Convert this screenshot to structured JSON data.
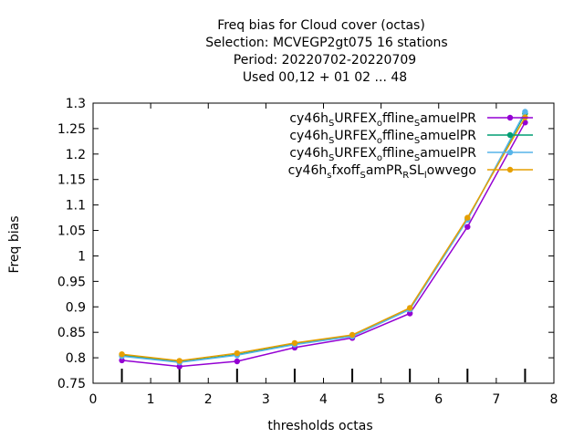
{
  "chart_data": {
    "type": "line",
    "title_lines": [
      "Freq bias  for Cloud cover (octas)",
      "Selection: MCVEGP2gt075      16 stations",
      "Period: 20220702-20220709",
      "Used  00,12  + 01 02 ... 48"
    ],
    "xlabel": "thresholds octas",
    "ylabel": "Freq bias",
    "xlim": [
      0,
      8
    ],
    "ylim": [
      0.75,
      1.3
    ],
    "xticks": [
      "0",
      "1",
      "2",
      "3",
      "4",
      "5",
      "6",
      "7",
      "8"
    ],
    "yticks": [
      "0.75",
      "0.8",
      "0.85",
      "0.9",
      "0.95",
      "1",
      "1.05",
      "1.1",
      "1.15",
      "1.2",
      "1.25",
      "1.3"
    ],
    "grid": false,
    "legend_position": "top-right",
    "x": [
      0.5,
      1.5,
      2.5,
      3.5,
      4.5,
      5.5,
      6.5,
      7.5
    ],
    "series": [
      {
        "name": "cy46h_SURFEX_offline_SamuelPR",
        "legend_parts": [
          [
            "cy46h",
            ""
          ],
          [
            "S",
            "sub"
          ],
          [
            "URFEX",
            ""
          ],
          [
            "o",
            "sub"
          ],
          [
            "ffline",
            ""
          ],
          [
            "S",
            "sub"
          ],
          [
            "amuelPR",
            ""
          ]
        ],
        "color": "#9400d3",
        "marker": "circle",
        "values": [
          0.795,
          0.783,
          0.793,
          0.82,
          0.839,
          0.887,
          1.057,
          1.262
        ]
      },
      {
        "name": "cy46h_SURFEX_offline_SamuelPR",
        "legend_parts": [
          [
            "cy46h",
            ""
          ],
          [
            "S",
            "sub"
          ],
          [
            "URFEX",
            ""
          ],
          [
            "o",
            "sub"
          ],
          [
            "ffline",
            ""
          ],
          [
            "S",
            "sub"
          ],
          [
            "amuelPR",
            ""
          ]
        ],
        "color": "#009e73",
        "marker": "circle",
        "values": [
          0.805,
          0.792,
          0.806,
          0.827,
          0.843,
          0.896,
          1.072,
          1.28
        ]
      },
      {
        "name": "cy46h_SURFEX_offline_SamuelPR",
        "legend_parts": [
          [
            "cy46h",
            ""
          ],
          [
            "S",
            "sub"
          ],
          [
            "URFEX",
            ""
          ],
          [
            "o",
            "sub"
          ],
          [
            "ffline",
            ""
          ],
          [
            "S",
            "sub"
          ],
          [
            "amuelPR",
            ""
          ]
        ],
        "color": "#56b4e9",
        "marker": "circle",
        "values": [
          0.803,
          0.791,
          0.805,
          0.826,
          0.842,
          0.895,
          1.071,
          1.283
        ]
      },
      {
        "name": "cy46h_sfxoff_SamPR_RSL_lowvego",
        "legend_parts": [
          [
            "cy46h",
            ""
          ],
          [
            "s",
            "sub"
          ],
          [
            "fxoff",
            ""
          ],
          [
            "S",
            "sub"
          ],
          [
            "amPR",
            ""
          ],
          [
            "R",
            "sub"
          ],
          [
            "SL",
            ""
          ],
          [
            "l",
            "sub"
          ],
          [
            "owvego",
            ""
          ]
        ],
        "color": "#e69f00",
        "marker": "circle",
        "values": [
          0.807,
          0.794,
          0.809,
          0.829,
          0.845,
          0.898,
          1.075,
          1.272
        ]
      }
    ]
  }
}
